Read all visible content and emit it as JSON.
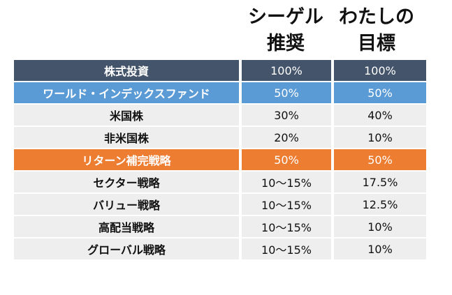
{
  "headers": {
    "col1": [
      "シーゲル",
      "推奨"
    ],
    "col2": [
      "わたしの",
      "目標"
    ]
  },
  "rows": [
    {
      "name": "株式投資",
      "v1": "100%",
      "v2": "100%",
      "style": "dark"
    },
    {
      "name": "ワールド・インデックスファンド",
      "v1": "50%",
      "v2": "50%",
      "style": "blue"
    },
    {
      "name": "米国株",
      "v1": "30%",
      "v2": "40%",
      "style": "light"
    },
    {
      "name": "非米国株",
      "v1": "20%",
      "v2": "10%",
      "style": "light"
    },
    {
      "name": "リターン補完戦略",
      "v1": "50%",
      "v2": "50%",
      "style": "orange"
    },
    {
      "name": "セクター戦略",
      "v1": "10～15%",
      "v2": "17.5%",
      "style": "light"
    },
    {
      "name": "バリュー戦略",
      "v1": "10～15%",
      "v2": "12.5%",
      "style": "light"
    },
    {
      "name": "高配当戦略",
      "v1": "10～15%",
      "v2": "10%",
      "style": "light"
    },
    {
      "name": "グローバル戦略",
      "v1": "10～15%",
      "v2": "10%",
      "style": "light"
    }
  ],
  "colors": {
    "dark": "#44546a",
    "blue": "#5b9bd5",
    "orange": "#ed7d31",
    "light": "#eeeeee"
  }
}
